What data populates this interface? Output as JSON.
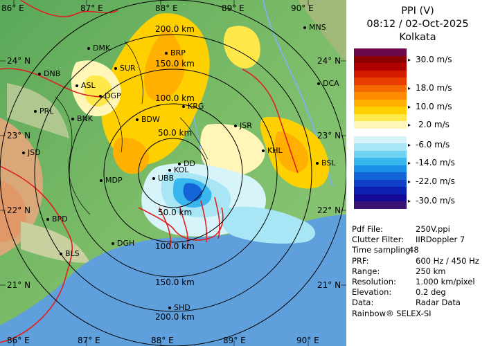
{
  "header": {
    "product": "PPI (V)",
    "datetime": "08:12 / 02-Oct-2025",
    "station": "Kolkata"
  },
  "legend": {
    "colors": [
      "#6a0a4a",
      "#8a0000",
      "#b00000",
      "#d21a00",
      "#e83c00",
      "#f56a00",
      "#ff8c00",
      "#ffb000",
      "#ffd000",
      "#ffe84a",
      "#fff6b8",
      "#ffffff",
      "#d6f4fa",
      "#a8e6f6",
      "#70d2f2",
      "#38b6ee",
      "#1a90e6",
      "#1464d8",
      "#1040c8",
      "#0c20b0",
      "#140a96",
      "#3a1274"
    ],
    "labels": [
      "30.0 m/s",
      "18.0 m/s",
      "10.0 m/s",
      "2.0 m/s",
      "-6.0 m/s",
      "-14.0 m/s",
      "-22.0 m/s",
      "-30.0 m/s"
    ]
  },
  "metadata": [
    {
      "key": "Pdf File:",
      "value": "250V.ppi"
    },
    {
      "key": "Clutter Filter:",
      "value": "IIRDoppler 7"
    },
    {
      "key": "Time sampling:",
      "value": "48"
    },
    {
      "key": "PRF:",
      "value": "600 Hz / 450 Hz"
    },
    {
      "key": "Range:",
      "value": "250 km"
    },
    {
      "key": "Resolution:",
      "value": "1.000 km/pixel"
    },
    {
      "key": "Elevation:",
      "value": "0.2 deg"
    },
    {
      "key": "Data:",
      "value": "Radar Data"
    }
  ],
  "footer": "Rainbow® SELEX-SI",
  "map": {
    "lon_labels_top": [
      "86° E",
      "87° E",
      "88° E",
      "89° E",
      "90° E"
    ],
    "lon_labels_bottom": [
      "86° E",
      "87° E",
      "88° E",
      "89° E",
      "90° E"
    ],
    "lat_labels_left": [
      "24° N",
      "23° N",
      "22° N",
      "21° N"
    ],
    "lat_labels_right": [
      "24° N",
      "23° N",
      "22° N",
      "21° N"
    ],
    "range_labels": [
      "50.0 km",
      "100.0 km",
      "150.0 km",
      "200.0 km"
    ],
    "range_labels_south": [
      "50.0 km",
      "100.0 km",
      "150.0 km",
      "200.0 km"
    ],
    "cities": [
      "MNS",
      "DMK",
      "BRP",
      "DNB",
      "SUR",
      "DCA",
      "ASL",
      "DGP",
      "KRG",
      "PRL",
      "BNK",
      "BDW",
      "JSR",
      "JSD",
      "KHL",
      "DD",
      "BSL",
      "KOL",
      "MDP",
      "UBB",
      "BPD",
      "DGH",
      "BLS",
      "SHD"
    ]
  }
}
